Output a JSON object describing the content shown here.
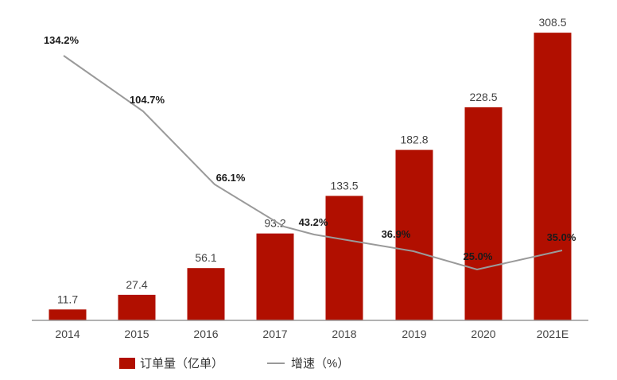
{
  "chart_data": {
    "type": "bar",
    "title": "",
    "xlabel": "",
    "ylabel": "",
    "categories": [
      "2014",
      "2015",
      "2016",
      "2017",
      "2018",
      "2019",
      "2020",
      "2021E"
    ],
    "series": [
      {
        "name": "订单量（亿单）",
        "type": "bar",
        "color": "#b10f00",
        "values": [
          11.7,
          27.4,
          56.1,
          93.2,
          133.5,
          182.8,
          228.5,
          308.5
        ],
        "labels": [
          "11.7",
          "27.4",
          "56.1",
          "93.2",
          "133.5",
          "182.8",
          "228.5",
          "308.5"
        ]
      },
      {
        "name": "增速（%）",
        "type": "line",
        "color": "#9a9a9a",
        "values": [
          134.2,
          104.7,
          66.1,
          43.2,
          36.9,
          25.0,
          35.0
        ],
        "categories": [
          "2015",
          "2016",
          "2017",
          "2018",
          "2019",
          "2020",
          "2021E"
        ],
        "labels": [
          "134.2%",
          "104.7%",
          "66.1%",
          "43.2%",
          "36.9%",
          "25.0%",
          "35.0%"
        ]
      }
    ],
    "grid": false,
    "legend_position": "bottom"
  },
  "legend": {
    "bar_label": "订单量（亿单）",
    "line_label": "增速（%）"
  }
}
